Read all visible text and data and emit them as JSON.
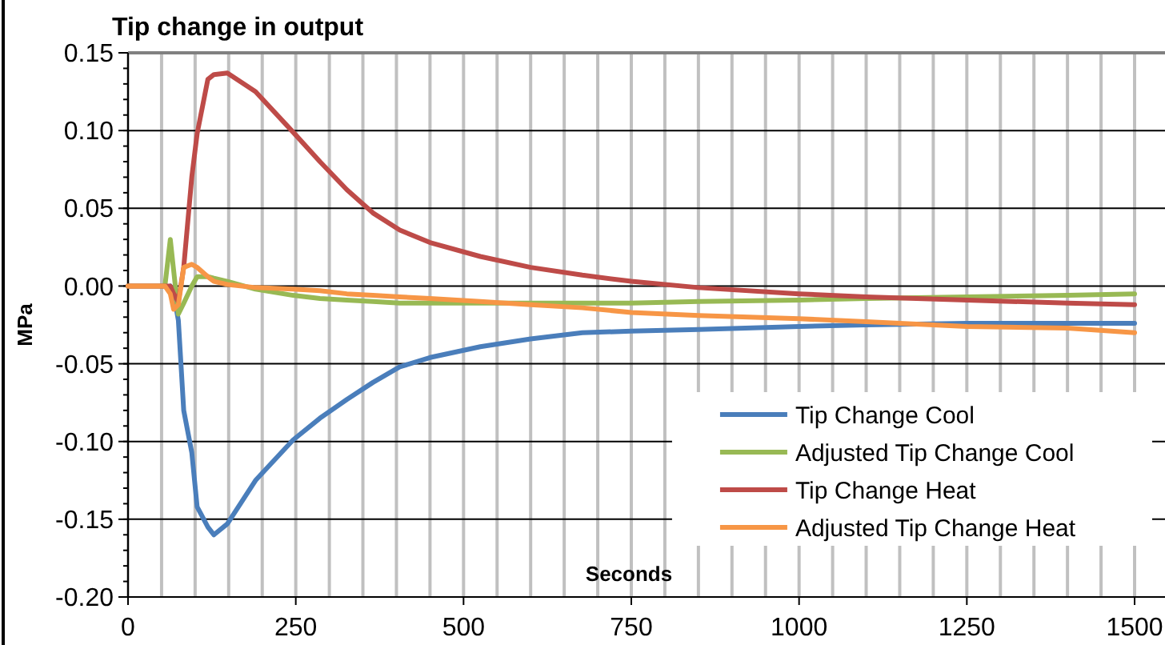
{
  "chart_data": {
    "type": "line",
    "title": "Tip change in output",
    "xlabel": "Seconds",
    "ylabel": "MPa",
    "x": [
      0,
      55,
      63,
      68,
      75,
      83,
      95,
      103,
      119,
      128,
      148,
      190,
      246,
      286,
      326,
      365,
      405,
      450,
      525,
      600,
      677,
      750,
      850,
      1000,
      1100,
      1250,
      1400,
      1500
    ],
    "series": [
      {
        "name": "Tip Change Cool",
        "color": "#4a7ebb",
        "values": [
          null,
          null,
          0,
          -0.005,
          -0.022,
          -0.08,
          -0.107,
          -0.142,
          -0.155,
          -0.16,
          -0.153,
          -0.125,
          -0.099,
          -0.085,
          -0.073,
          -0.062,
          -0.052,
          -0.046,
          -0.039,
          -0.034,
          -0.03,
          -0.029,
          -0.028,
          -0.026,
          -0.025,
          -0.024,
          -0.024,
          -0.024
        ]
      },
      {
        "name": "Adjusted Tip Change Cool",
        "color": "#98b954",
        "values": [
          0,
          0,
          0.03,
          0.01,
          -0.018,
          -0.011,
          0,
          0.006,
          0.006,
          0.005,
          0.003,
          -0.002,
          -0.006,
          -0.008,
          -0.009,
          -0.01,
          -0.011,
          -0.011,
          -0.011,
          -0.011,
          -0.011,
          -0.011,
          -0.01,
          -0.009,
          -0.008,
          -0.007,
          -0.006,
          -0.005
        ]
      },
      {
        "name": "Tip Change Heat",
        "color": "#be4b48",
        "values": [
          0,
          0,
          0,
          -0.005,
          -0.01,
          0.012,
          0.07,
          0.098,
          0.133,
          0.136,
          0.137,
          0.125,
          0.099,
          0.08,
          0.062,
          0.047,
          0.036,
          0.028,
          0.019,
          0.012,
          0.007,
          0.003,
          -0.001,
          -0.005,
          -0.007,
          -0.009,
          -0.011,
          -0.012
        ]
      },
      {
        "name": "Adjusted Tip Change Heat",
        "color": "#f79646",
        "values": [
          0,
          0,
          -0.005,
          -0.015,
          -0.012,
          0.012,
          0.014,
          0.012,
          0.006,
          0.003,
          0.001,
          -0.001,
          -0.002,
          -0.003,
          -0.005,
          -0.006,
          -0.007,
          -0.008,
          -0.01,
          -0.012,
          -0.014,
          -0.017,
          -0.019,
          -0.021,
          -0.023,
          -0.026,
          -0.027,
          -0.03
        ]
      }
    ],
    "xlim": [
      0,
      1550
    ],
    "xticks": [
      0,
      {
        "value": 50,
        "label": null
      },
      {
        "value": 100,
        "label": null
      },
      {
        "value": 150,
        "label": null
      },
      {
        "value": 200,
        "label": null
      },
      250,
      {
        "value": 300,
        "label": null
      },
      {
        "value": 350,
        "label": null
      },
      {
        "value": 400,
        "label": null
      },
      {
        "value": 450,
        "label": null
      },
      500,
      {
        "value": 550,
        "label": null
      },
      {
        "value": 600,
        "label": null
      },
      {
        "value": 650,
        "label": null
      },
      {
        "value": 700,
        "label": null
      },
      750,
      {
        "value": 800,
        "label": null
      },
      {
        "value": 850,
        "label": null
      },
      {
        "value": 900,
        "label": null
      },
      {
        "value": 950,
        "label": null
      },
      1000,
      {
        "value": 1050,
        "label": null
      },
      {
        "value": 1100,
        "label": null
      },
      {
        "value": 1150,
        "label": null
      },
      {
        "value": 1200,
        "label": null
      },
      1250,
      {
        "value": 1300,
        "label": null
      },
      {
        "value": 1350,
        "label": null
      },
      {
        "value": 1400,
        "label": null
      },
      {
        "value": 1450,
        "label": null
      },
      1500
    ],
    "ylim": [
      -0.2,
      0.15
    ],
    "yticks": [
      {
        "value": -0.2,
        "label": "-0.20"
      },
      {
        "value": -0.15,
        "label": "-0.15"
      },
      {
        "value": -0.1,
        "label": "-0.10"
      },
      {
        "value": -0.05,
        "label": "-0.05"
      },
      {
        "value": 0,
        "label": "0.00"
      },
      {
        "value": 0.05,
        "label": "0.05"
      },
      {
        "value": 0.1,
        "label": "0.10"
      },
      {
        "value": 0.15,
        "label": "0.15"
      }
    ],
    "grid": true,
    "legend": "bottom right",
    "marker": "none",
    "line_style": "solid"
  }
}
